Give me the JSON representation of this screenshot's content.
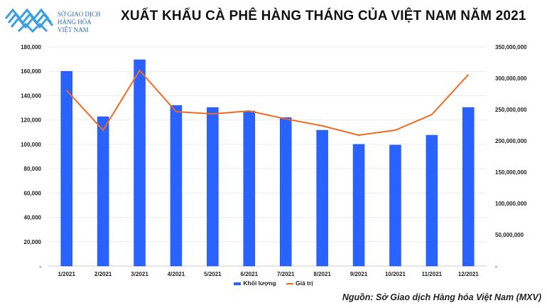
{
  "logo": {
    "lines": [
      "SỞ GIAO DỊCH",
      "HÀNG HÓA",
      "VIỆT NAM"
    ]
  },
  "chart_data": {
    "type": "bar+line",
    "title": "XUẤT KHẨU CÀ PHÊ HÀNG THÁNG CỦA VIỆT NAM NĂM 2021",
    "categories": [
      "1/2021",
      "2/2021",
      "3/2021",
      "4/2021",
      "5/2021",
      "6/2021",
      "7/2021",
      "8/2021",
      "9/2021",
      "10/2021",
      "11/2021",
      "12/2021"
    ],
    "series": [
      {
        "name": "Khối lượng",
        "type": "bar",
        "axis": "left",
        "color": "#2962ff",
        "values": [
          160000,
          122700,
          169500,
          132000,
          130300,
          127400,
          122000,
          111600,
          100000,
          99400,
          107500,
          130300
        ]
      },
      {
        "name": "Giá trị",
        "type": "line",
        "axis": "right",
        "color": "#f26b1d",
        "values": [
          280700000,
          217000000,
          312500000,
          246600000,
          243000000,
          247700000,
          235000000,
          224000000,
          209000000,
          217000000,
          242000000,
          305700000
        ]
      }
    ],
    "left_axis": {
      "ylim": [
        0,
        180000
      ],
      "ticks": [
        "-",
        "20,000",
        "40,000",
        "60,000",
        "80,000",
        "100,000",
        "120,000",
        "140,000",
        "160,000",
        "180,000"
      ]
    },
    "right_axis": {
      "ylim": [
        0,
        350000000
      ],
      "ticks": [
        "-",
        "50,000,000",
        "100,000,000",
        "150,000,000",
        "200,000,000",
        "250,000,000",
        "300,000,000",
        "350,000,000"
      ]
    },
    "grid": true,
    "legend": "bottom"
  },
  "source": "Nguồn: Sở Giao dịch Hàng hóa Việt Nam (MXV)"
}
